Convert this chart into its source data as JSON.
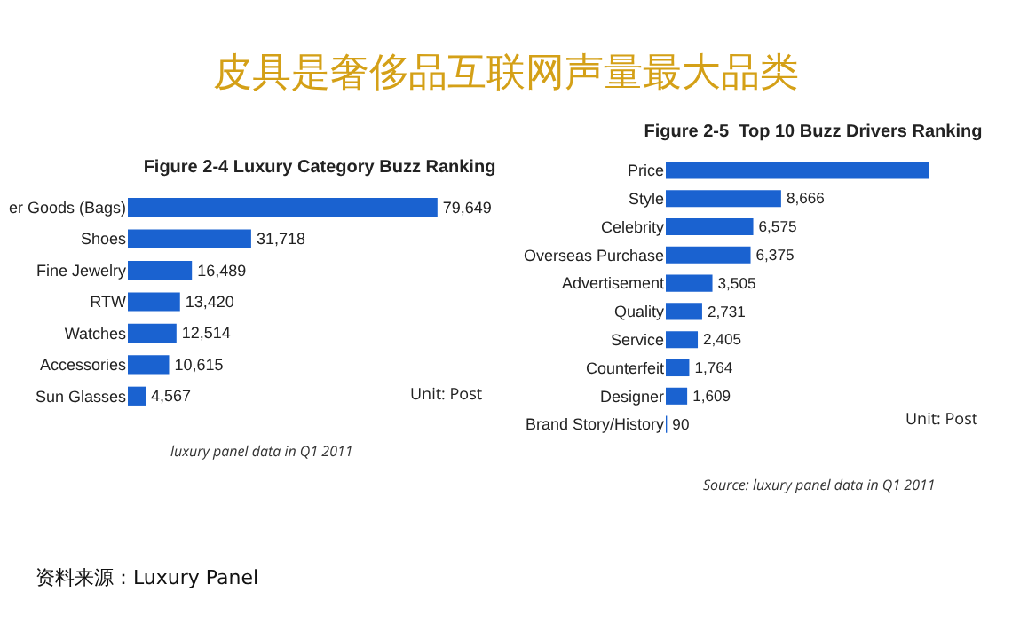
{
  "chart_data": [
    {
      "type": "other",
      "title": "皮具是奢侈品互联网声量最大品类",
      "annotations": [
        "资料来源：Luxury Panel"
      ]
    },
    {
      "type": "bar",
      "orientation": "horizontal",
      "title": "Figure 2-4 Luxury Category Buzz Ranking",
      "categories": [
        "er Goods (Bags)",
        "Shoes",
        "Fine Jewelry",
        "RTW",
        "Watches",
        "Accessories",
        "Sun Glasses"
      ],
      "values": [
        79649,
        31718,
        16489,
        13420,
        12514,
        10615,
        4567
      ],
      "value_labels": [
        "79,649",
        "31,718",
        "16,489",
        "13,420",
        "12,514",
        "10,615",
        "4,567"
      ],
      "color": "#1a62d0",
      "tick_labels": "y",
      "annotations": [
        "Unit: Post",
        "luxury panel data in Q1 2011"
      ]
    },
    {
      "type": "bar",
      "orientation": "horizontal",
      "title": "Figure 2-5  Top 10 Buzz Drivers Ranking",
      "categories": [
        "Price",
        "Style",
        "Celebrity",
        "Overseas Purchase",
        "Advertisement",
        "Quality",
        "Service",
        "Counterfeit",
        "Designer",
        "Brand Story/History"
      ],
      "values": [
        19750,
        8666,
        6575,
        6375,
        3505,
        2731,
        2405,
        1764,
        1609,
        90
      ],
      "value_labels": [
        null,
        "8,666",
        "6,575",
        "6,375",
        "3,505",
        "2,731",
        "2,405",
        "1,764",
        "1,609",
        "90"
      ],
      "color": "#1a62d0",
      "tick_labels": "y",
      "annotations": [
        "Unit: Post",
        "Source: luxury panel data in Q1 2011"
      ]
    }
  ]
}
